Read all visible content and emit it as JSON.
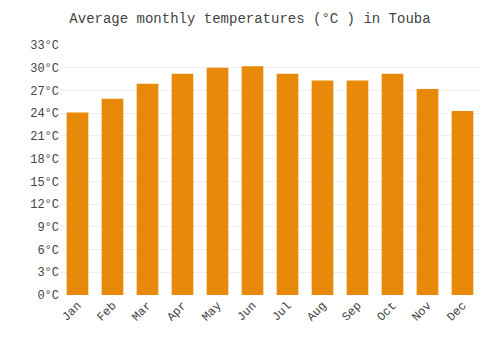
{
  "chart_data": {
    "type": "bar",
    "title": "Average monthly temperatures (°C ) in Touba",
    "categories": [
      "Jan",
      "Feb",
      "Mar",
      "Apr",
      "May",
      "Jun",
      "Jul",
      "Aug",
      "Sep",
      "Oct",
      "Nov",
      "Dec"
    ],
    "values": [
      24.1,
      25.9,
      27.9,
      29.2,
      30.0,
      30.2,
      29.2,
      28.3,
      28.3,
      29.2,
      27.2,
      24.3
    ],
    "color": "#E8890A",
    "ylim": [
      0,
      33
    ],
    "yticks": [
      {
        "value": 0,
        "label": "0°C"
      },
      {
        "value": 3,
        "label": "3°C"
      },
      {
        "value": 6,
        "label": "6°C"
      },
      {
        "value": 9,
        "label": "9°C"
      },
      {
        "value": 12,
        "label": "12°C"
      },
      {
        "value": 15,
        "label": "15°C"
      },
      {
        "value": 18,
        "label": "18°C"
      },
      {
        "value": 21,
        "label": "21°C"
      },
      {
        "value": 24,
        "label": "24°C"
      },
      {
        "value": 27,
        "label": "27°C"
      },
      {
        "value": 30,
        "label": "30°C"
      },
      {
        "value": 33,
        "label": "33°C"
      }
    ],
    "grid": true
  }
}
